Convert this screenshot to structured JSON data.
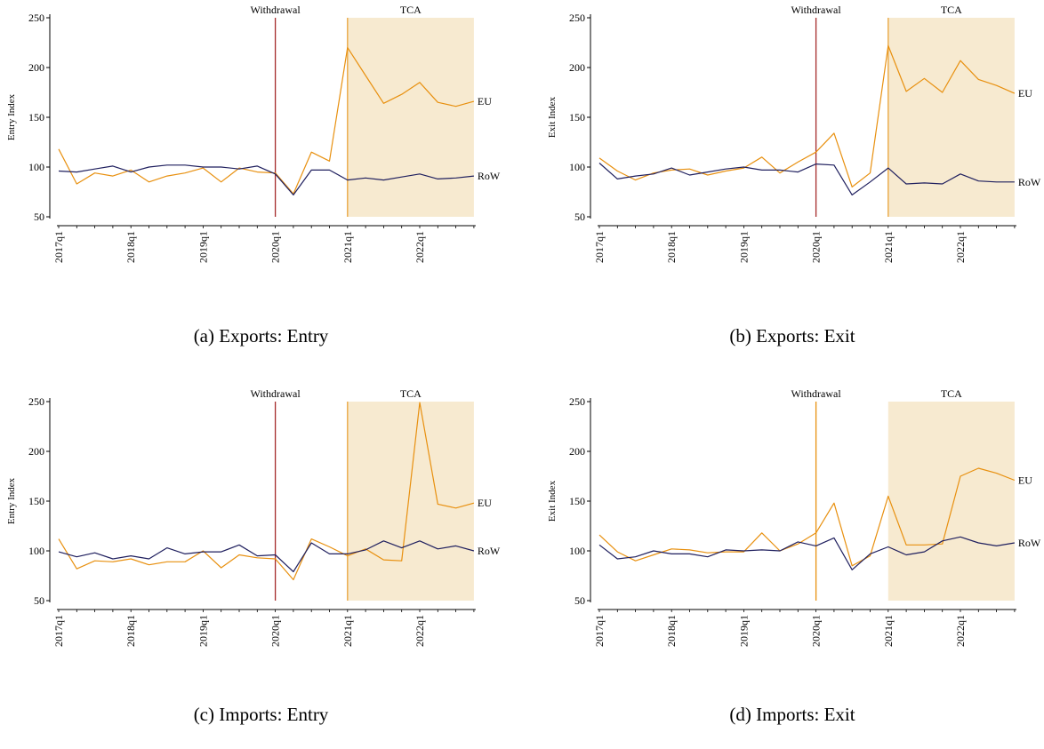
{
  "chart_data": [
    {
      "type": "line",
      "caption": "(a) Exports: Entry",
      "ylabel": "Entry Index",
      "ylim": [
        50,
        250
      ],
      "yticks": [
        50,
        100,
        150,
        200,
        250
      ],
      "x": [
        "2017q1",
        "2017q2",
        "2017q3",
        "2017q4",
        "2018q1",
        "2018q2",
        "2018q3",
        "2018q4",
        "2019q1",
        "2019q2",
        "2019q3",
        "2019q4",
        "2020q1",
        "2020q2",
        "2020q3",
        "2020q4",
        "2021q1",
        "2021q2",
        "2021q3",
        "2021q4",
        "2022q1",
        "2022q2",
        "2022q3",
        "2022q4"
      ],
      "xticks": [
        "2017q1",
        "2018q1",
        "2019q1",
        "2020q1",
        "2021q1",
        "2022q1"
      ],
      "events": [
        {
          "label": "Withdrawal",
          "at": "2020q1",
          "color": "#a52a2a"
        },
        {
          "label": "TCA",
          "at": "2021q1",
          "color": "#e8a33a",
          "shaded_until": "2022q4"
        }
      ],
      "shade_color": "#f7ead0",
      "series": [
        {
          "name": "EU",
          "color": "#e8900f",
          "values": [
            118,
            83,
            94,
            91,
            97,
            85,
            91,
            94,
            99,
            85,
            99,
            95,
            94,
            73,
            115,
            106,
            220,
            192,
            164,
            173,
            185,
            165,
            161,
            166
          ]
        },
        {
          "name": "RoW",
          "color": "#1f1f5e",
          "values": [
            96,
            95,
            98,
            101,
            95,
            100,
            102,
            102,
            100,
            100,
            98,
            101,
            93,
            72,
            97,
            97,
            87,
            89,
            87,
            90,
            93,
            88,
            89,
            91
          ]
        }
      ]
    },
    {
      "type": "line",
      "caption": "(b) Exports: Exit",
      "ylabel": "Exit Index",
      "ylim": [
        50,
        250
      ],
      "yticks": [
        50,
        100,
        150,
        200,
        250
      ],
      "x": [
        "2017q1",
        "2017q2",
        "2017q3",
        "2017q4",
        "2018q1",
        "2018q2",
        "2018q3",
        "2018q4",
        "2019q1",
        "2019q2",
        "2019q3",
        "2019q4",
        "2020q1",
        "2020q2",
        "2020q3",
        "2020q4",
        "2021q1",
        "2021q2",
        "2021q3",
        "2021q4",
        "2022q1",
        "2022q2",
        "2022q3",
        "2022q4"
      ],
      "xticks": [
        "2017q1",
        "2018q1",
        "2019q1",
        "2020q1",
        "2021q1",
        "2022q1"
      ],
      "events": [
        {
          "label": "Withdrawal",
          "at": "2020q1",
          "color": "#a52a2a"
        },
        {
          "label": "TCA",
          "at": "2021q1",
          "color": "#e8a33a",
          "shaded_until": "2022q4"
        }
      ],
      "shade_color": "#f7ead0",
      "series": [
        {
          "name": "EU",
          "color": "#e8900f",
          "values": [
            109,
            96,
            87,
            94,
            97,
            98,
            92,
            96,
            99,
            110,
            94,
            105,
            115,
            134,
            80,
            94,
            222,
            176,
            189,
            175,
            207,
            188,
            182,
            174
          ]
        },
        {
          "name": "RoW",
          "color": "#1f1f5e",
          "values": [
            104,
            88,
            91,
            93,
            99,
            92,
            95,
            98,
            100,
            97,
            97,
            95,
            103,
            102,
            72,
            85,
            99,
            83,
            84,
            83,
            93,
            86,
            85,
            85
          ]
        }
      ]
    },
    {
      "type": "line",
      "caption": "(c) Imports: Entry",
      "ylabel": "Entry Index",
      "ylim": [
        50,
        250
      ],
      "yticks": [
        50,
        100,
        150,
        200,
        250
      ],
      "x": [
        "2017q1",
        "2017q2",
        "2017q3",
        "2017q4",
        "2018q1",
        "2018q2",
        "2018q3",
        "2018q4",
        "2019q1",
        "2019q2",
        "2019q3",
        "2019q4",
        "2020q1",
        "2020q2",
        "2020q3",
        "2020q4",
        "2021q1",
        "2021q2",
        "2021q3",
        "2021q4",
        "2022q1",
        "2022q2",
        "2022q3",
        "2022q4"
      ],
      "xticks": [
        "2017q1",
        "2018q1",
        "2019q1",
        "2020q1",
        "2021q1",
        "2022q1"
      ],
      "events": [
        {
          "label": "Withdrawal",
          "at": "2020q1",
          "color": "#a52a2a"
        },
        {
          "label": "TCA",
          "at": "2021q1",
          "color": "#e8a33a",
          "shaded_until": "2022q4"
        }
      ],
      "shade_color": "#f7ead0",
      "series": [
        {
          "name": "EU",
          "color": "#e8900f",
          "values": [
            112,
            82,
            90,
            89,
            92,
            86,
            89,
            89,
            100,
            83,
            96,
            93,
            92,
            71,
            112,
            104,
            95,
            102,
            91,
            90,
            249,
            147,
            143,
            148
          ]
        },
        {
          "name": "RoW",
          "color": "#1f1f5e",
          "values": [
            99,
            94,
            98,
            92,
            95,
            92,
            103,
            97,
            99,
            99,
            106,
            95,
            96,
            79,
            108,
            97,
            97,
            101,
            110,
            103,
            110,
            102,
            105,
            100
          ]
        }
      ]
    },
    {
      "type": "line",
      "caption": "(d) Imports: Exit",
      "ylabel": "Exit Index",
      "ylim": [
        50,
        250
      ],
      "yticks": [
        50,
        100,
        150,
        200,
        250
      ],
      "x": [
        "2017q1",
        "2017q2",
        "2017q3",
        "2017q4",
        "2018q1",
        "2018q2",
        "2018q3",
        "2018q4",
        "2019q1",
        "2019q2",
        "2019q3",
        "2019q4",
        "2020q1",
        "2020q2",
        "2020q3",
        "2020q4",
        "2021q1",
        "2021q2",
        "2021q3",
        "2021q4",
        "2022q1",
        "2022q2",
        "2022q3",
        "2022q4"
      ],
      "xticks": [
        "2017q1",
        "2018q1",
        "2019q1",
        "2020q1",
        "2021q1",
        "2022q1"
      ],
      "events": [
        {
          "label": "Withdrawal",
          "at": "2020q1",
          "color": "#e8900f"
        },
        {
          "label": "TCA",
          "at": "2021q1",
          "color": "#f7ead0",
          "shaded_until": "2022q4"
        }
      ],
      "shade_color": "#f7ead0",
      "series": [
        {
          "name": "EU",
          "color": "#e8900f",
          "values": [
            116,
            99,
            90,
            96,
            102,
            101,
            98,
            99,
            99,
            118,
            100,
            107,
            118,
            148,
            85,
            95,
            155,
            106,
            106,
            107,
            175,
            183,
            178,
            171
          ]
        },
        {
          "name": "RoW",
          "color": "#1f1f5e",
          "values": [
            106,
            92,
            94,
            100,
            97,
            97,
            94,
            101,
            100,
            101,
            100,
            109,
            105,
            113,
            81,
            97,
            104,
            96,
            99,
            110,
            114,
            108,
            105,
            108
          ]
        }
      ]
    }
  ]
}
